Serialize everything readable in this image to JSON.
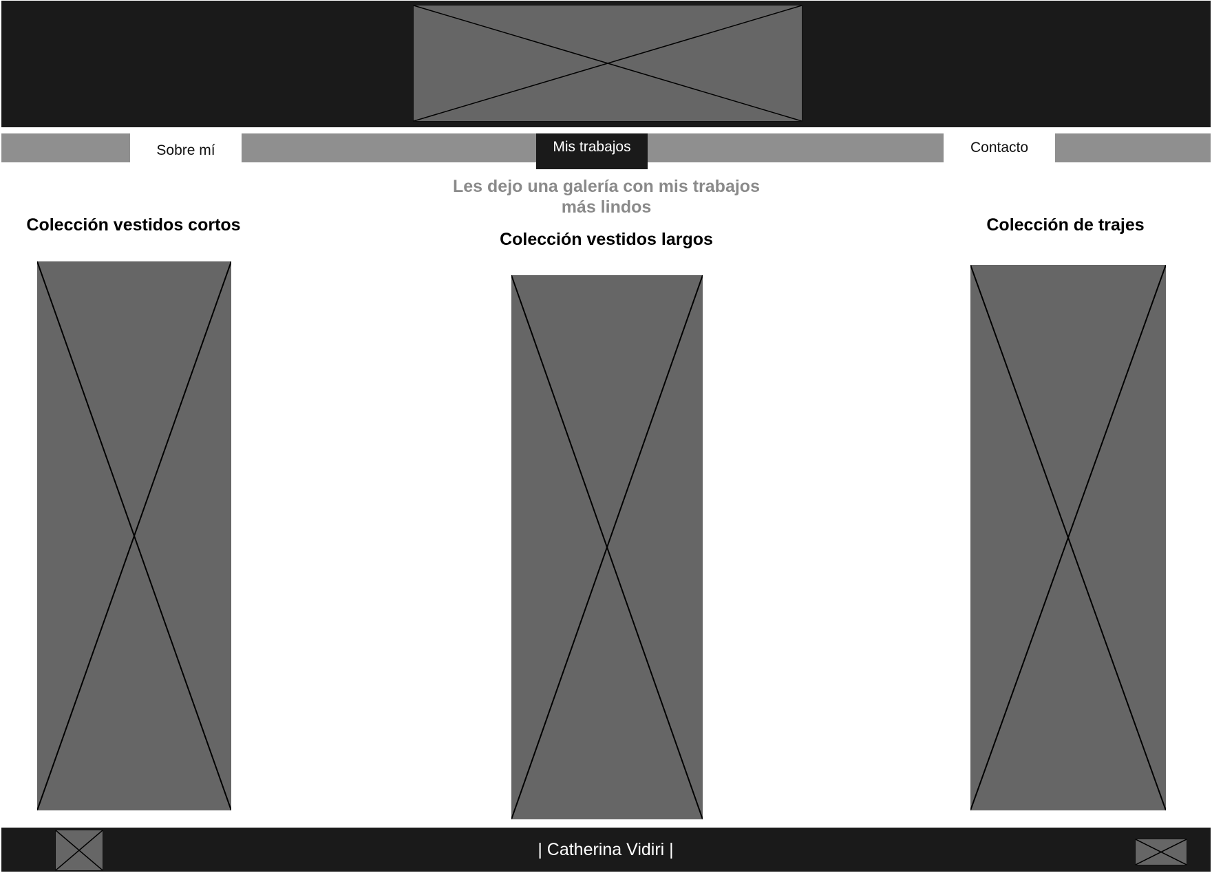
{
  "header": {
    "logo_icon": "image-placeholder-icon"
  },
  "nav": {
    "items": [
      {
        "label": "Sobre mí"
      },
      {
        "label": "Mis trabajos",
        "active": true
      },
      {
        "label": "Contacto"
      }
    ],
    "colors": {
      "bar": "#8f8f8f",
      "active_bg": "#1a1a1a",
      "inactive_bg": "#ffffff"
    }
  },
  "main": {
    "subtitle": "Les dejo una galería con mis trabajos más lindos",
    "collections": [
      {
        "title": "Colección vestidos cortos",
        "image_icon": "image-placeholder-icon"
      },
      {
        "title": "Colección vestidos largos",
        "image_icon": "image-placeholder-icon"
      },
      {
        "title": "Colección de trajes",
        "image_icon": "image-placeholder-icon"
      }
    ]
  },
  "footer": {
    "name": "| Catherina Vidiri |",
    "left_icon": "image-placeholder-icon",
    "right_icon": "image-placeholder-icon"
  },
  "colors": {
    "header_bg": "#1a1a1a",
    "placeholder": "#666666",
    "subtitle_text": "#8a8a8a"
  }
}
